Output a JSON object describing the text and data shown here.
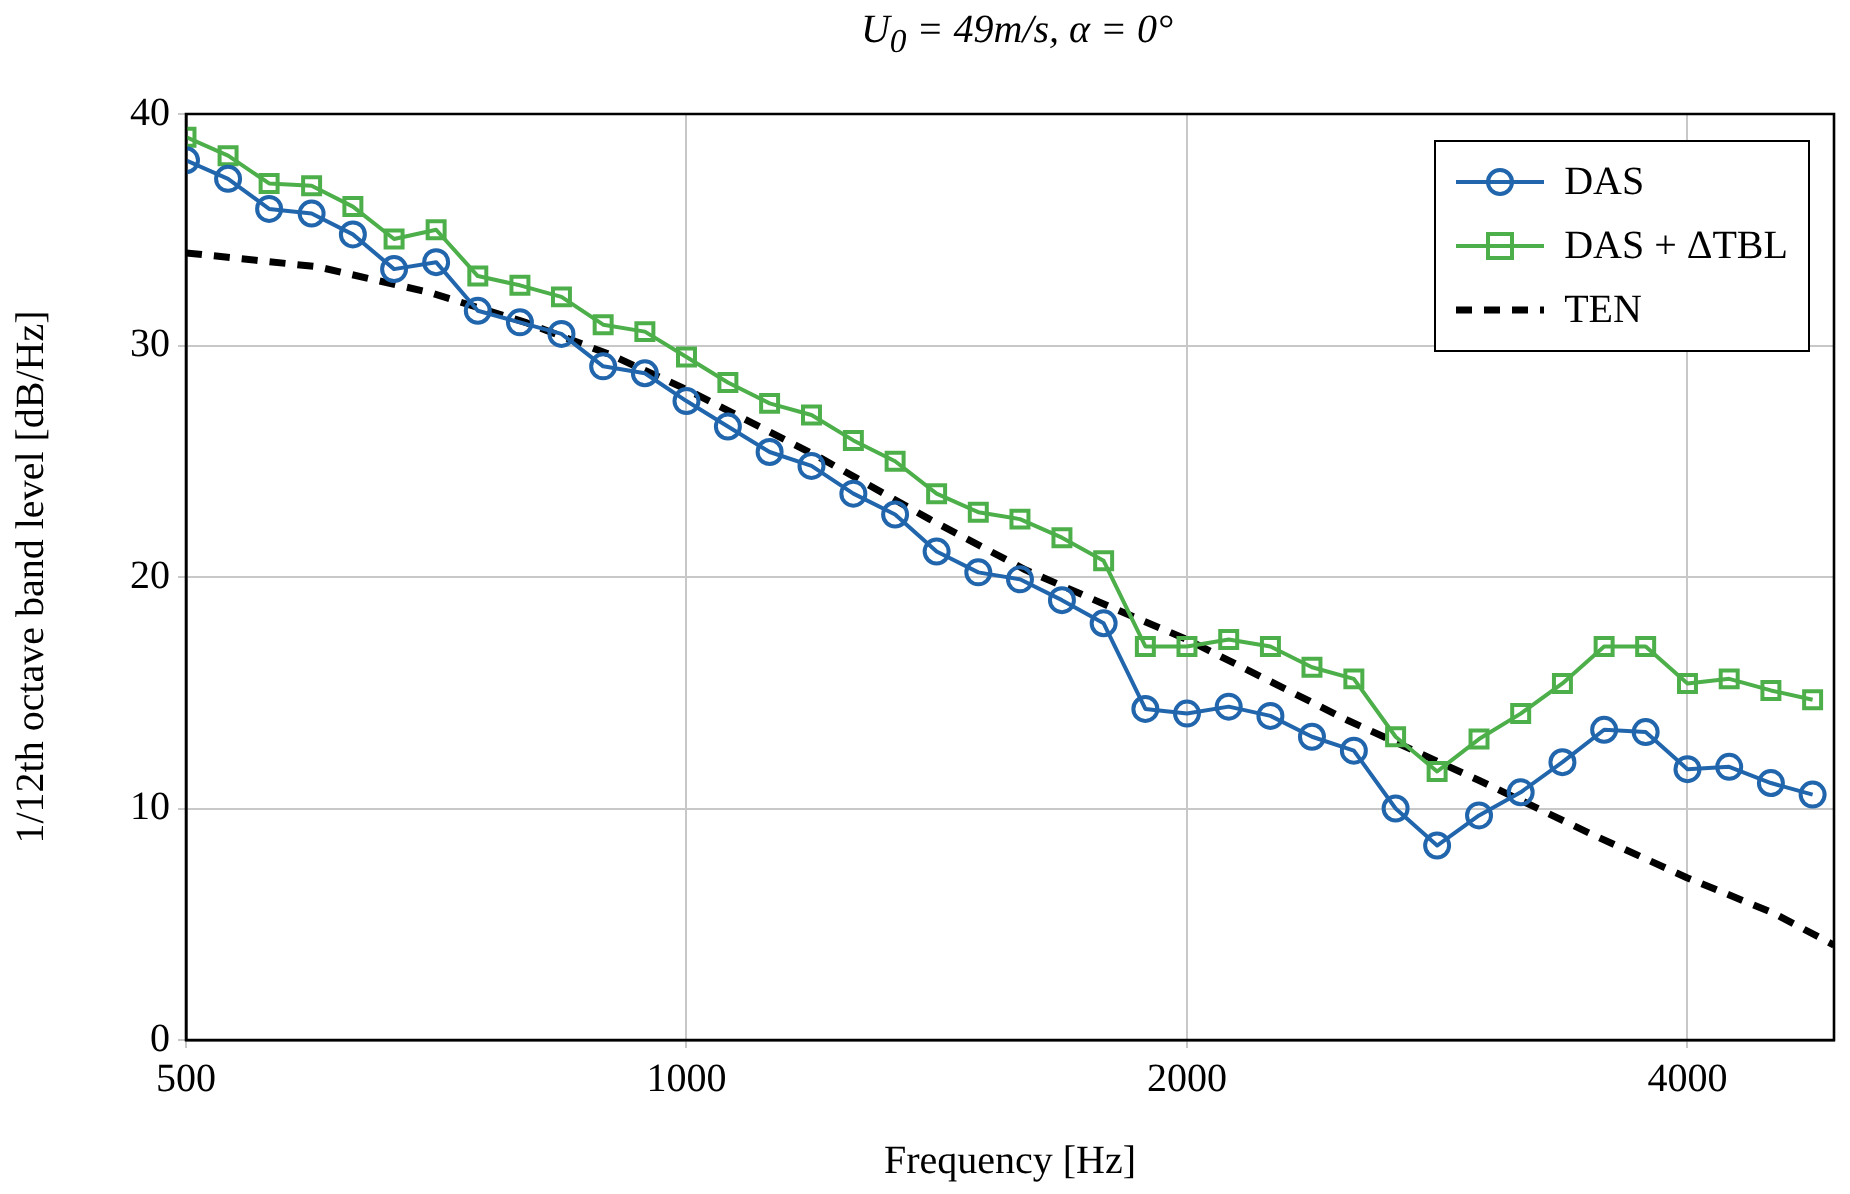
{
  "chart_data": {
    "type": "line",
    "title": "U$_{0}$ = 49m/s, α = 0°",
    "xlabel": "Frequency [Hz]",
    "ylabel": "1/12th octave band level [dB/Hz]",
    "log": "x",
    "xlim": [
      500,
      4900
    ],
    "xticks": [
      500,
      1000,
      2000,
      4000
    ],
    "ylim": [
      0,
      40
    ],
    "yticks": [
      0,
      10,
      20,
      30,
      40
    ],
    "grid": true,
    "legend": "top right",
    "x": [
      500,
      530,
      561,
      595,
      630,
      667,
      707,
      749,
      794,
      841,
      891,
      944,
      1000,
      1059,
      1122,
      1189,
      1260,
      1335,
      1414,
      1498,
      1587,
      1682,
      1782,
      1888,
      2000,
      2119,
      2245,
      2378,
      2520,
      2670,
      2828,
      2997,
      3175,
      3364,
      3564,
      3775,
      4000,
      4238,
      4490,
      4757
    ],
    "series": [
      {
        "name": "DAS",
        "color": "#2166ac",
        "marker": "circle",
        "line_style": "solid",
        "values": [
          38.0,
          37.2,
          35.9,
          35.7,
          34.8,
          33.3,
          33.6,
          31.5,
          31.0,
          30.5,
          29.1,
          28.8,
          27.6,
          26.5,
          25.4,
          24.8,
          23.6,
          22.7,
          21.1,
          20.2,
          19.9,
          19.0,
          18.0,
          14.3,
          14.1,
          14.4,
          14.0,
          13.1,
          12.5,
          10.0,
          8.4,
          9.7,
          10.7,
          12.0,
          13.4,
          13.3,
          11.7,
          11.8,
          11.1,
          10.6
        ]
      },
      {
        "name": "DAS + ΔTBL",
        "color": "#4daf4a",
        "marker": "square",
        "line_style": "solid",
        "values": [
          39.0,
          38.2,
          37.0,
          36.9,
          36.0,
          34.6,
          35.0,
          33.0,
          32.6,
          32.1,
          30.9,
          30.6,
          29.5,
          28.4,
          27.5,
          27.0,
          25.9,
          25.0,
          23.6,
          22.8,
          22.5,
          21.7,
          20.7,
          17.0,
          17.0,
          17.3,
          17.0,
          16.1,
          15.6,
          13.1,
          11.6,
          13.0,
          14.1,
          15.4,
          17.0,
          17.0,
          15.4,
          15.6,
          15.1,
          14.7
        ]
      },
      {
        "name": "TEN",
        "color": "#000000",
        "marker": "none",
        "line_style": "dashed",
        "x": [
          500,
          600,
          700,
          800,
          900,
          1000,
          1200,
          1400,
          1600,
          1800,
          2000,
          2500,
          3000,
          3500,
          4000,
          4500,
          4900
        ],
        "values": [
          34.0,
          33.4,
          32.3,
          31.0,
          29.6,
          28.1,
          25.2,
          22.5,
          20.3,
          18.7,
          17.3,
          13.8,
          11.2,
          8.9,
          7.0,
          5.5,
          4.1
        ]
      }
    ]
  }
}
